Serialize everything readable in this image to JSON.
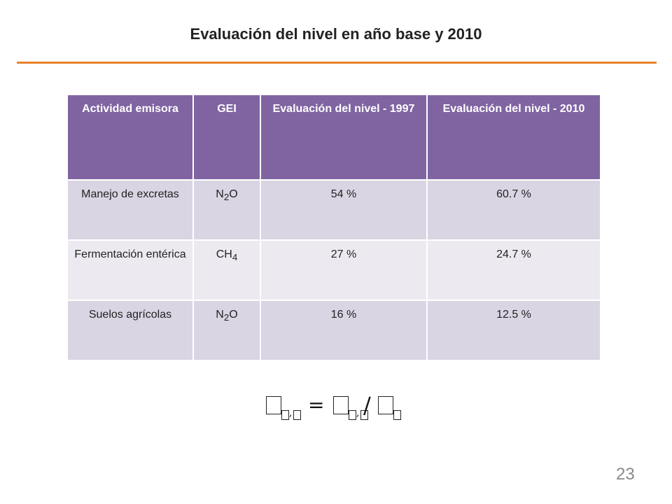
{
  "slide": {
    "title": "Evaluación del nivel en año base y 2010",
    "page_number": "23",
    "accent_color": "#e8822a",
    "header_color": "#8064a2"
  },
  "table": {
    "headers": [
      "Actividad emisora",
      "GEI",
      "Evaluación del nivel - 1997",
      "Evaluación del nivel - 2010"
    ],
    "rows": [
      {
        "activity": "Manejo de excretas",
        "gas_base": "N",
        "gas_sub": "2",
        "gas_tail": "O",
        "level_1997": "54 %",
        "level_2010": "60.7 %"
      },
      {
        "activity": "Fermentación entérica",
        "gas_base": "CH",
        "gas_sub": "4",
        "gas_tail": "",
        "level_1997": "27 %",
        "level_2010": "24.7 %"
      },
      {
        "activity": "Suelos agrícolas",
        "gas_base": "N",
        "gas_sub": "2",
        "gas_tail": "O",
        "level_1997": "16 %",
        "level_2010": "12.5 %"
      }
    ]
  },
  "formula": {
    "equals": "=",
    "comma": ",",
    "slash": "/",
    "note": "unrendered-glyph-boxes"
  }
}
